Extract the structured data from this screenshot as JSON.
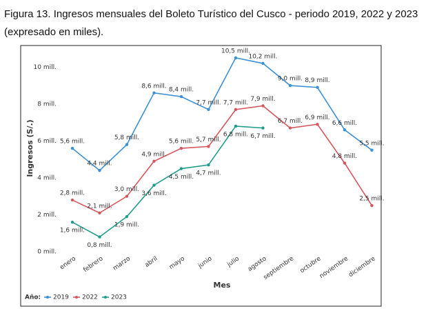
{
  "chart_data": {
    "type": "line",
    "title": "Figura 13. Ingresos mensuales del Boleto Turístico del Cusco - periodo 2019, 2022 y 2023 (expresado en miles).",
    "x_label": "Mes",
    "y_label": "Ingresos (S/.)",
    "legend_title": "Año:",
    "legend": "bottom-left",
    "categories": [
      "enero",
      "febrero",
      "marzo",
      "abril",
      "mayo",
      "junio",
      "julio",
      "agosto",
      "septiembre",
      "octubre",
      "noviembre",
      "diciembre"
    ],
    "ylim": [
      0,
      11
    ],
    "yticks": [
      {
        "value": 0,
        "label": "0 mill."
      },
      {
        "value": 2,
        "label": "2 mill."
      },
      {
        "value": 4,
        "label": "4 mill."
      },
      {
        "value": 6,
        "label": "6 mill."
      },
      {
        "value": 8,
        "label": "8 mill."
      },
      {
        "value": 10,
        "label": "10 mill."
      }
    ],
    "series": [
      {
        "name": "2019",
        "color": "#3a8fd6",
        "values": [
          5.6,
          4.4,
          5.8,
          8.6,
          8.4,
          7.7,
          10.5,
          10.2,
          9.0,
          8.9,
          6.6,
          5.5
        ],
        "value_labels": [
          "5,6 mill.",
          "4,4 mill.",
          "5,8 mill.",
          "8,6 mill.",
          "8,4 mill.",
          "7,7 mill.",
          "10,5 mill.",
          "10,2 mill.",
          "9,0 mill.",
          "8,9 mill.",
          "6,6 mill.",
          "5,5 mill."
        ]
      },
      {
        "name": "2022",
        "color": "#d6565c",
        "values": [
          2.8,
          2.1,
          3.0,
          4.9,
          5.6,
          5.7,
          7.7,
          7.9,
          6.7,
          6.9,
          4.8,
          2.5
        ],
        "value_labels": [
          "2,8 mill.",
          "2,1 mill.",
          "3,0 mill.",
          "4,9 mill.",
          "5,6 mill.",
          "5,7 mill.",
          "7,7 mill.",
          "7,9 mill.",
          "6,7 mill.",
          "6,9 mill.",
          "4,8 mill.",
          "2,5 mill."
        ]
      },
      {
        "name": "2023",
        "color": "#1e9c88",
        "values": [
          1.6,
          0.8,
          1.9,
          3.6,
          4.5,
          4.7,
          6.8,
          6.7,
          null,
          null,
          null,
          null
        ],
        "value_labels": [
          "1,6 mill.",
          "0,8 mill.",
          "1,9 mill.",
          "3,6 mill.",
          "4,5 mill.",
          "4,7 mill.",
          "6,8 mill.",
          "6,7 mill.",
          null,
          null,
          null,
          null
        ]
      }
    ]
  }
}
